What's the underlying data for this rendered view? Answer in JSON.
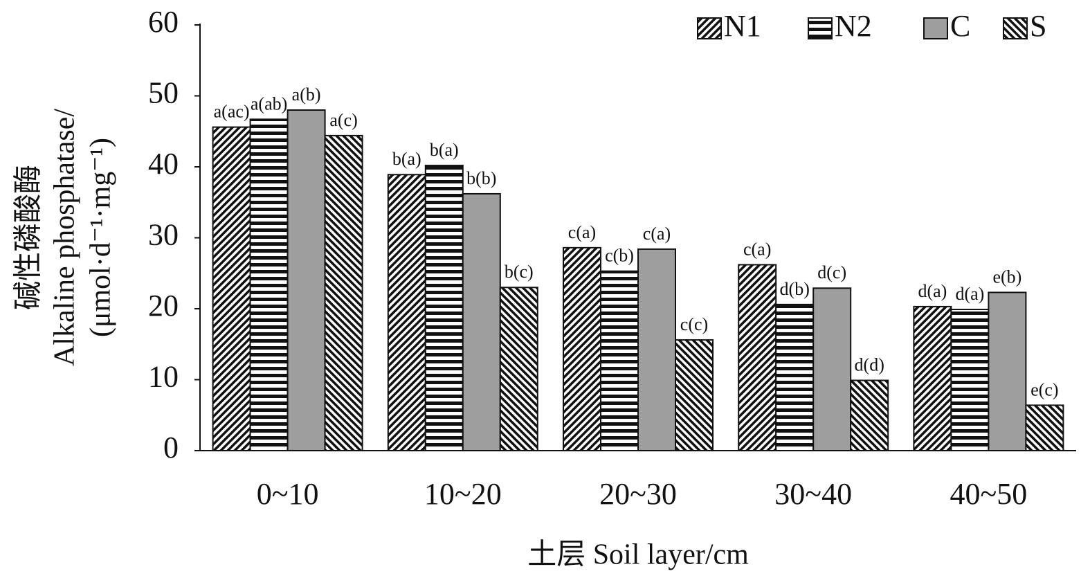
{
  "chart_data": {
    "type": "bar",
    "xlabel": "土层 Soil layer/cm",
    "ylabel": [
      "碱性磷酸酶",
      "Alkaline phosphatase/",
      "(μmol·d⁻¹·mg⁻¹)"
    ],
    "categories": [
      "0~10",
      "10~20",
      "20~30",
      "30~40",
      "40~50"
    ],
    "ylim": [
      0,
      60
    ],
    "yticks": [
      0,
      10,
      20,
      30,
      40,
      50,
      60
    ],
    "legend": "top-right",
    "series": [
      {
        "name": "N1",
        "color": "#111111",
        "pattern": "diagonal-up",
        "values": [
          45.6,
          38.9,
          28.6,
          26.2,
          20.3
        ],
        "annotations": [
          "a(ac)",
          "b(a)",
          "c(a)",
          "c(a)",
          "d(a)"
        ]
      },
      {
        "name": "N2",
        "color": "#111111",
        "pattern": "horizontal",
        "values": [
          46.7,
          40.2,
          25.3,
          20.6,
          19.9
        ],
        "annotations": [
          "a(ab)",
          "b(a)",
          "c(b)",
          "d(b)",
          "d(a)"
        ]
      },
      {
        "name": "C",
        "color": "#9e9e9e",
        "pattern": "solid",
        "values": [
          48.0,
          36.2,
          28.4,
          22.9,
          22.3
        ],
        "annotations": [
          "a(b)",
          "b(b)",
          "c(a)",
          "d(c)",
          "e(b)"
        ]
      },
      {
        "name": "S",
        "color": "#111111",
        "pattern": "diagonal-down",
        "values": [
          44.4,
          23.0,
          15.6,
          9.9,
          6.4
        ],
        "annotations": [
          "a(c)",
          "b(c)",
          "c(c)",
          "d(d)",
          "e(c)"
        ]
      }
    ]
  }
}
